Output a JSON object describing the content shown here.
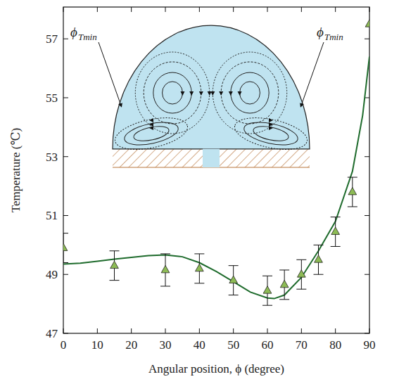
{
  "chart_data": {
    "type": "scatter",
    "x_label": "Angular position, ϕ (degree)",
    "y_label": "Temperature (℃)",
    "xlim": [
      0,
      90
    ],
    "ylim": [
      47,
      58.08
    ],
    "xticks": [
      0,
      10,
      20,
      30,
      40,
      50,
      60,
      70,
      80,
      90
    ],
    "yticks": [
      47,
      49,
      51,
      53,
      55,
      57
    ],
    "grid": false,
    "annotations": [
      {
        "text": "ϕ",
        "sub": "Tmin"
      },
      {
        "text": "ϕ",
        "sub": "Tmin"
      }
    ],
    "series": [
      {
        "type": "scatter",
        "marker": "triangle",
        "color": "#8dbb55",
        "x": [
          0,
          15,
          30,
          40,
          50,
          60,
          65,
          70,
          75,
          80,
          85,
          90
        ],
        "values": [
          49.9,
          49.3,
          49.15,
          49.2,
          48.8,
          48.45,
          48.65,
          49.0,
          49.5,
          50.45,
          51.8,
          57.5
        ],
        "errors": [
          0.5,
          0.5,
          0.55,
          0.5,
          0.5,
          0.5,
          0.5,
          0.5,
          0.5,
          0.5,
          0.5,
          null
        ]
      },
      {
        "type": "line",
        "line_style": "solid",
        "color": "#1e6b2c",
        "x": [
          0,
          5,
          10,
          15,
          20,
          25,
          30,
          35,
          40,
          45,
          50,
          55,
          60,
          62,
          65,
          70,
          75,
          80,
          85,
          88,
          90
        ],
        "values": [
          49.35,
          49.38,
          49.45,
          49.52,
          49.58,
          49.64,
          49.66,
          49.6,
          49.4,
          49.1,
          48.75,
          48.4,
          48.2,
          48.18,
          48.3,
          48.9,
          49.8,
          50.8,
          52.5,
          54.4,
          56.4
        ]
      }
    ]
  }
}
